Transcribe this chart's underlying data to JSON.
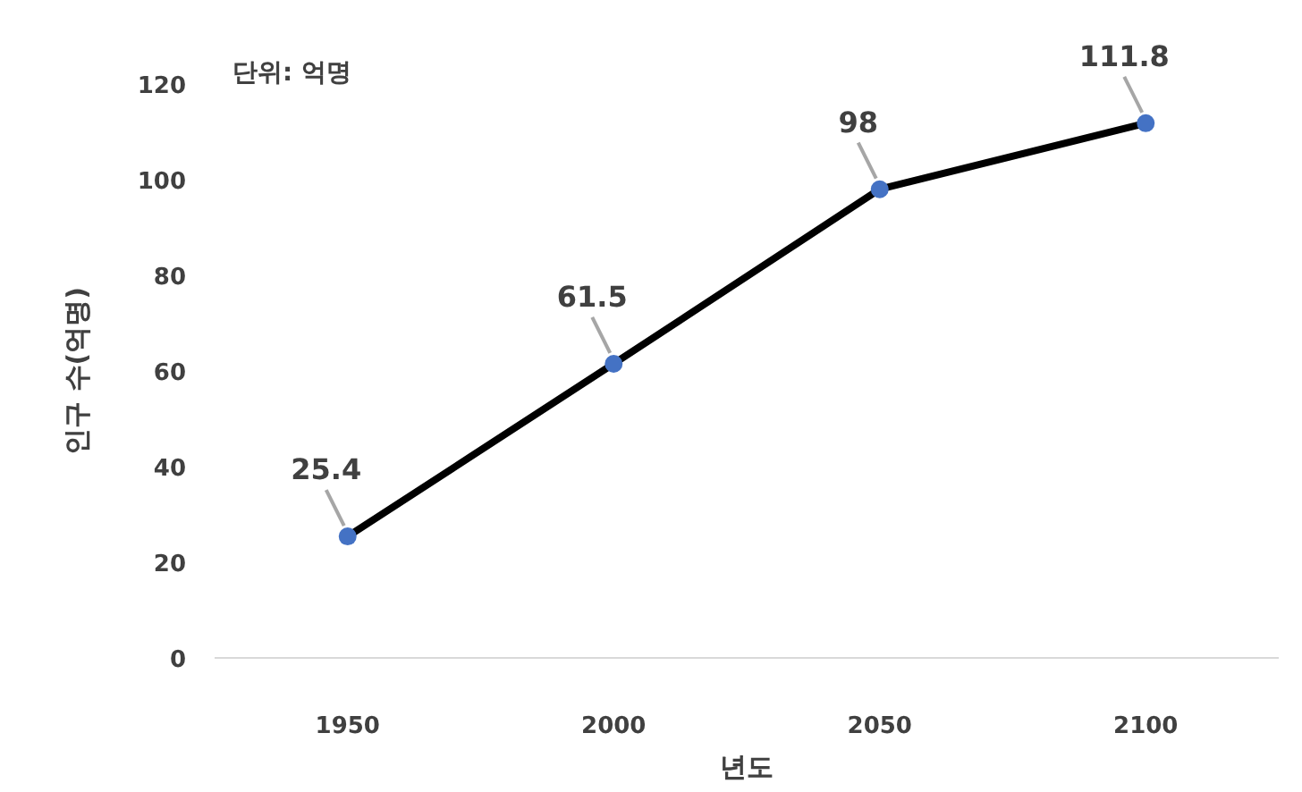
{
  "chart_data": {
    "type": "line",
    "xlabel": "년도",
    "ylabel": "인구 수(억명)",
    "annotations": [
      "단위: 억명"
    ],
    "categories": [
      "1950",
      "2000",
      "2050",
      "2100"
    ],
    "series": [
      {
        "color": "#000000",
        "colors": [
          "#4472c4",
          "#4472c4",
          "#4472c4",
          "#4472c4"
        ],
        "values": [
          25.4,
          61.5,
          98,
          111.8
        ]
      }
    ],
    "ylim": [
      0,
      120
    ],
    "yticks": [
      0,
      20,
      40,
      60,
      80,
      100,
      120
    ],
    "marker": "circle",
    "line_style": "solid",
    "data_labels": true,
    "grid": false
  }
}
